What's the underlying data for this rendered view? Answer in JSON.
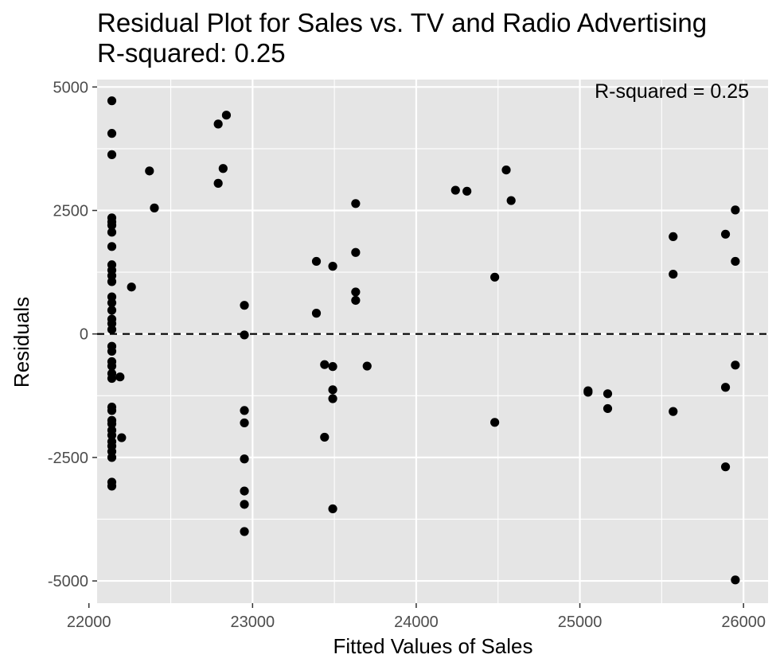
{
  "chart_data": {
    "type": "scatter",
    "title": "Residual Plot for Sales vs. TV and Radio Advertising",
    "subtitle": "R-squared: 0.25",
    "xlabel": "Fitted Values of Sales",
    "ylabel": "Residuals",
    "xlim": [
      22050,
      26150
    ],
    "ylim": [
      -5450,
      5150
    ],
    "x_ticks": [
      22000,
      23000,
      24000,
      25000,
      26000
    ],
    "y_ticks": [
      5000,
      2500,
      0,
      -2500,
      -5000
    ],
    "grid": true,
    "reference_line": {
      "y": 0,
      "style": "dashed"
    },
    "annotation": "R-squared = 0.25",
    "points": [
      [
        22140,
        4720
      ],
      [
        22140,
        4060
      ],
      [
        22140,
        3630
      ],
      [
        22140,
        2350
      ],
      [
        22140,
        2270
      ],
      [
        22140,
        2200
      ],
      [
        22140,
        2060
      ],
      [
        22140,
        1770
      ],
      [
        22140,
        1400
      ],
      [
        22140,
        1290
      ],
      [
        22140,
        1180
      ],
      [
        22140,
        1060
      ],
      [
        22140,
        750
      ],
      [
        22140,
        630
      ],
      [
        22140,
        480
      ],
      [
        22140,
        300
      ],
      [
        22140,
        210
      ],
      [
        22140,
        90
      ],
      [
        22140,
        -250
      ],
      [
        22140,
        -350
      ],
      [
        22140,
        -560
      ],
      [
        22140,
        -650
      ],
      [
        22140,
        -800
      ],
      [
        22140,
        -900
      ],
      [
        22140,
        -1480
      ],
      [
        22140,
        -1550
      ],
      [
        22140,
        -1750
      ],
      [
        22140,
        -1820
      ],
      [
        22140,
        -1950
      ],
      [
        22140,
        -2050
      ],
      [
        22140,
        -2180
      ],
      [
        22140,
        -2270
      ],
      [
        22140,
        -2380
      ],
      [
        22140,
        -2500
      ],
      [
        22140,
        -3000
      ],
      [
        22140,
        -3080
      ],
      [
        22190,
        -870
      ],
      [
        22200,
        -2100
      ],
      [
        22260,
        950
      ],
      [
        22370,
        3300
      ],
      [
        22400,
        2550
      ],
      [
        22790,
        4250
      ],
      [
        22790,
        3050
      ],
      [
        22820,
        3350
      ],
      [
        22840,
        4430
      ],
      [
        22950,
        580
      ],
      [
        22950,
        -20
      ],
      [
        22950,
        -1550
      ],
      [
        22950,
        -1800
      ],
      [
        22950,
        -2530
      ],
      [
        22950,
        -3180
      ],
      [
        22950,
        -3450
      ],
      [
        22950,
        -4000
      ],
      [
        23390,
        1470
      ],
      [
        23390,
        420
      ],
      [
        23440,
        -620
      ],
      [
        23440,
        -2090
      ],
      [
        23490,
        1370
      ],
      [
        23490,
        -660
      ],
      [
        23490,
        -1130
      ],
      [
        23490,
        -1310
      ],
      [
        23490,
        -3540
      ],
      [
        23630,
        2640
      ],
      [
        23630,
        1650
      ],
      [
        23630,
        850
      ],
      [
        23630,
        680
      ],
      [
        23700,
        -650
      ],
      [
        24240,
        2910
      ],
      [
        24310,
        2890
      ],
      [
        24480,
        1150
      ],
      [
        24480,
        -1790
      ],
      [
        24550,
        3320
      ],
      [
        24580,
        2700
      ],
      [
        25050,
        -1150
      ],
      [
        25050,
        -1180
      ],
      [
        25170,
        -1210
      ],
      [
        25170,
        -1510
      ],
      [
        25570,
        1970
      ],
      [
        25570,
        1210
      ],
      [
        25570,
        -1570
      ],
      [
        25890,
        2020
      ],
      [
        25890,
        -1080
      ],
      [
        25890,
        -2690
      ],
      [
        25950,
        2510
      ],
      [
        25950,
        1470
      ],
      [
        25950,
        -630
      ],
      [
        25950,
        -4980
      ]
    ]
  },
  "colors": {
    "panel": "#e5e5e5",
    "grid": "#ffffff",
    "point": "#000000",
    "tick_text": "#4d4d4d"
  }
}
